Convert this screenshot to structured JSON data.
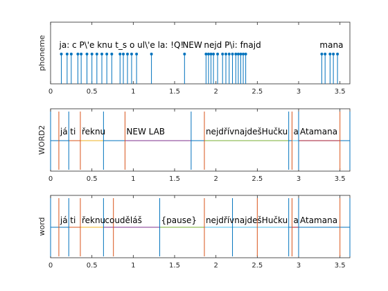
{
  "chart_data": [
    {
      "type": "stem",
      "ylabel": "phoneme",
      "xlim": [
        0,
        3.62
      ],
      "xticks": [
        "0",
        "0.5",
        "1",
        "1.5",
        "2",
        "2.5",
        "3",
        "3.5"
      ],
      "xtick_values": [
        0,
        0.5,
        1,
        1.5,
        2,
        2.5,
        3,
        3.5
      ],
      "stem_color": "#0072bd",
      "marker_x": [
        0.13,
        0.2,
        0.25,
        0.33,
        0.37,
        0.44,
        0.5,
        0.56,
        0.62,
        0.68,
        0.74,
        0.84,
        0.88,
        0.93,
        0.98,
        1.04,
        1.22,
        1.62,
        1.88,
        1.91,
        1.94,
        1.97,
        2.02,
        2.08,
        2.12,
        2.16,
        2.2,
        2.24,
        2.27,
        2.3,
        2.33,
        2.36,
        3.28,
        3.32,
        3.38,
        3.42,
        3.47
      ],
      "labels": [
        {
          "text": "ja: c P\\'e knu t_s o ul\\'e la: !Q!",
          "x": 0.13
        },
        {
          "text": "NEW",
          "x": 1.62
        },
        {
          "text": "nejd P\\i: fnajd",
          "x": 1.88
        },
        {
          "text": "mana",
          "x": 3.28
        }
      ]
    },
    {
      "type": "segments",
      "ylabel": "WORD2",
      "xlim": [
        0,
        3.62
      ],
      "xticks": [
        "0",
        "0.5",
        "1",
        "1.5",
        "2",
        "2.5",
        "3",
        "3.5"
      ],
      "xtick_values": [
        0,
        0.5,
        1,
        1.5,
        2,
        2.5,
        3,
        3.5
      ],
      "boundaries": [
        0,
        0.1,
        0.22,
        0.36,
        0.64,
        0.9,
        1.7,
        1.86,
        2.88,
        2.92,
        3.0,
        3.5,
        3.62
      ],
      "words": [
        {
          "text": "já",
          "start": 0.1,
          "end": 0.22
        },
        {
          "text": "ti",
          "start": 0.22,
          "end": 0.36
        },
        {
          "text": "řeknu",
          "start": 0.36,
          "end": 0.64
        },
        {
          "text": "NEW LAB",
          "start": 0.9,
          "end": 1.7
        },
        {
          "text": "nejdřívnajdešHučku",
          "start": 1.86,
          "end": 2.88
        },
        {
          "text": "a",
          "start": 2.92,
          "end": 3.0
        },
        {
          "text": "Atamana",
          "start": 3.0,
          "end": 3.5
        }
      ],
      "segment_colors": [
        "#0072bd",
        "#d95319",
        "#edb120",
        "#7e2f8e",
        "#77ac30",
        "#4dbeee",
        "#a2142f"
      ]
    },
    {
      "type": "segments",
      "ylabel": "word",
      "xlim": [
        0,
        3.62
      ],
      "xticks": [
        "0",
        "0.5",
        "1",
        "1.5",
        "2",
        "2.5",
        "3",
        "3.5"
      ],
      "xtick_values": [
        0,
        0.5,
        1,
        1.5,
        2,
        2.5,
        3,
        3.5
      ],
      "boundaries": [
        0,
        0.1,
        0.22,
        0.36,
        0.64,
        0.76,
        1.32,
        1.86,
        2.2,
        2.5,
        2.88,
        2.92,
        3.0,
        3.5,
        3.62
      ],
      "words": [
        {
          "text": "já",
          "start": 0.1,
          "end": 0.22
        },
        {
          "text": "ti",
          "start": 0.22,
          "end": 0.36
        },
        {
          "text": "řeknu",
          "start": 0.36,
          "end": 0.64
        },
        {
          "text": "couděláš",
          "start": 0.64,
          "end": 1.32
        },
        {
          "text": "{pause}",
          "start": 1.32,
          "end": 1.86
        },
        {
          "text": "nejdřívnajdešHučku",
          "start": 1.86,
          "end": 2.88
        },
        {
          "text": "a",
          "start": 2.92,
          "end": 3.0
        },
        {
          "text": "Atamana",
          "start": 3.0,
          "end": 3.5
        }
      ],
      "segment_colors": [
        "#0072bd",
        "#d95319",
        "#edb120",
        "#7e2f8e",
        "#77ac30",
        "#4dbeee",
        "#a2142f"
      ]
    }
  ]
}
